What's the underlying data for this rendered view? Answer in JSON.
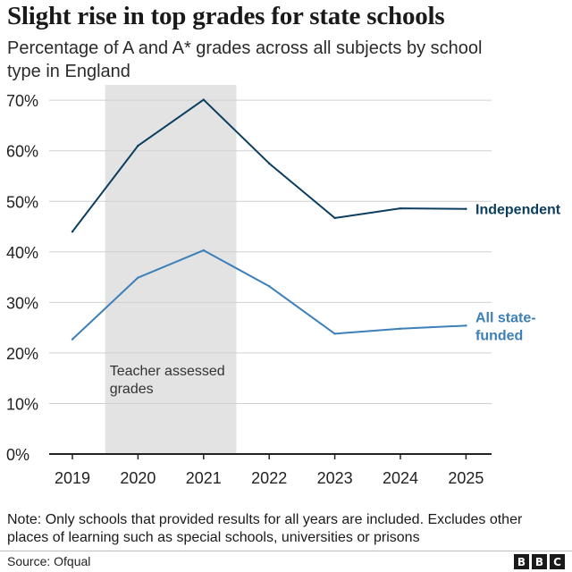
{
  "title": "Slight rise in top grades for state schools",
  "subtitle": "Percentage of A and A* grades across all subjects by school type in England",
  "chart_data": {
    "type": "line",
    "title": "Slight rise in top grades for state schools",
    "subtitle": "Percentage of A and A* grades across all subjects by school type in England",
    "categories": [
      "2019",
      "2020",
      "2021",
      "2022",
      "2023",
      "2024",
      "2025"
    ],
    "yticks": [
      "0%",
      "10%",
      "20%",
      "30%",
      "40%",
      "50%",
      "60%",
      "70%"
    ],
    "ylim": [
      0,
      70
    ],
    "grid": true,
    "series": [
      {
        "name": "Independent",
        "color": "#0b3d5e",
        "values": [
          44.0,
          61.0,
          70.1,
          57.5,
          46.7,
          48.6,
          48.5
        ]
      },
      {
        "name": "All state-funded",
        "label_lines": [
          "All state-",
          "funded"
        ],
        "color": "#3d7fb8",
        "values": [
          22.7,
          34.9,
          40.3,
          33.2,
          23.8,
          24.8,
          25.4
        ]
      }
    ],
    "shaded_region": {
      "from": "2020",
      "to": "2021",
      "label_lines": [
        "Teacher assessed",
        "grades"
      ],
      "color": "#e3e3e3"
    }
  },
  "note": "Note: Only schools that provided results for all years are included. Excludes other places of learning such as special schools, universities or prisons",
  "source": "Source: Ofqual",
  "logo": [
    "B",
    "B",
    "C"
  ]
}
